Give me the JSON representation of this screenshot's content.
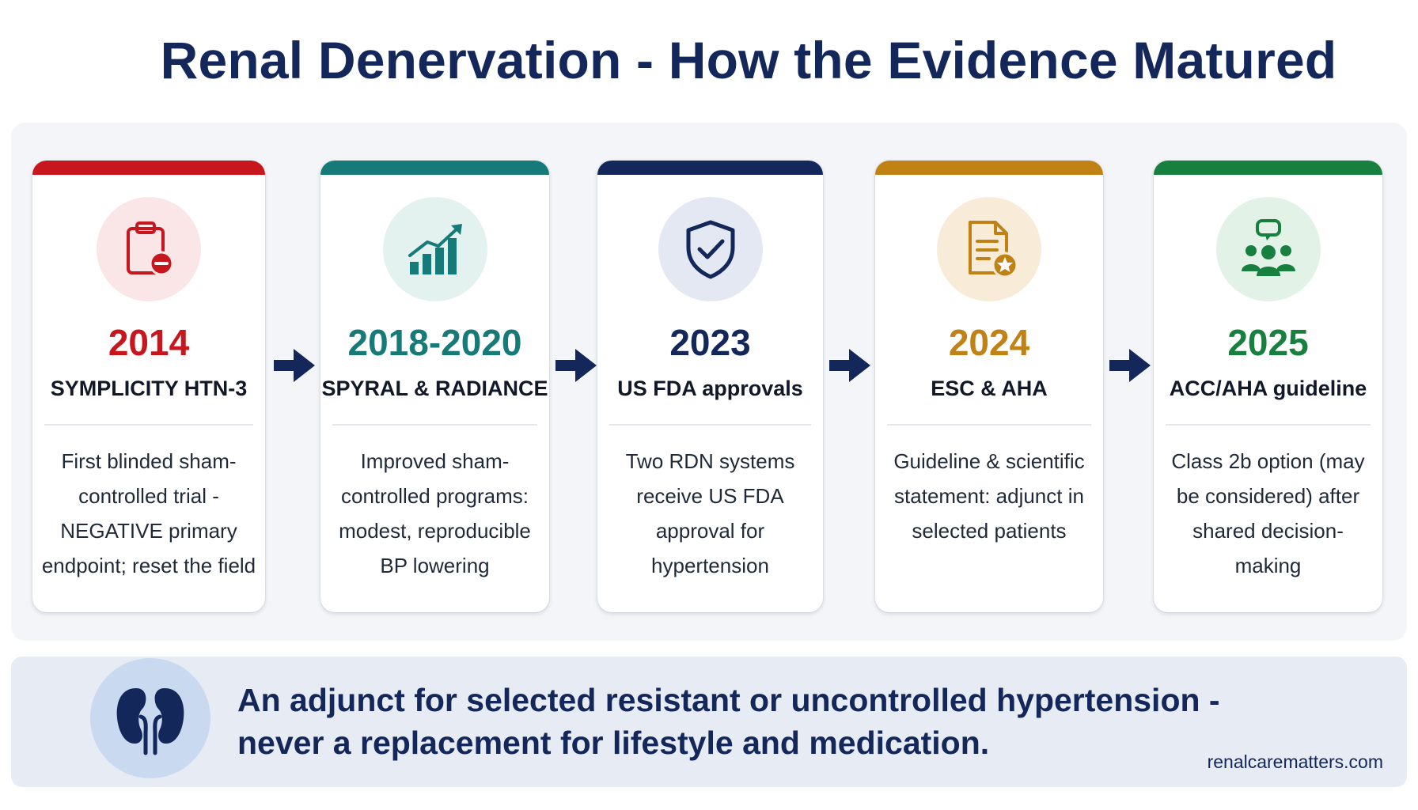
{
  "title": "Renal Denervation - How the Evidence Matured",
  "milestones": [
    {
      "year": "2014",
      "name": "SYMPLICITY HTN-3",
      "description": "First blinded sham-controlled trial - NEGATIVE primary endpoint; reset the field",
      "color": "#c8161e",
      "icon": "clipboard-minus-icon"
    },
    {
      "year": "2018-2020",
      "name": "SPYRAL & RADIANCE",
      "description": "Improved sham-controlled programs: modest, reproducible BP lowering",
      "color": "#167a78",
      "icon": "chart-growth-icon"
    },
    {
      "year": "2023",
      "name": "US FDA approvals",
      "description": "Two RDN systems receive US FDA approval for hypertension",
      "color": "#14275a",
      "icon": "shield-check-icon"
    },
    {
      "year": "2024",
      "name": "ESC & AHA",
      "description": "Guideline & scientific statement: adjunct in selected patients",
      "color": "#c08214",
      "icon": "document-star-icon"
    },
    {
      "year": "2025",
      "name": "ACC/AHA guideline",
      "description": "Class 2b option (may be considered) after shared decision-making",
      "color": "#17803e",
      "icon": "group-chat-icon"
    }
  ],
  "footer": {
    "message": "An adjunct for selected resistant or uncontrolled hypertension - never a replacement for lifestyle and medication.",
    "website": "renalcarematters.com",
    "icon": "kidneys-icon"
  }
}
